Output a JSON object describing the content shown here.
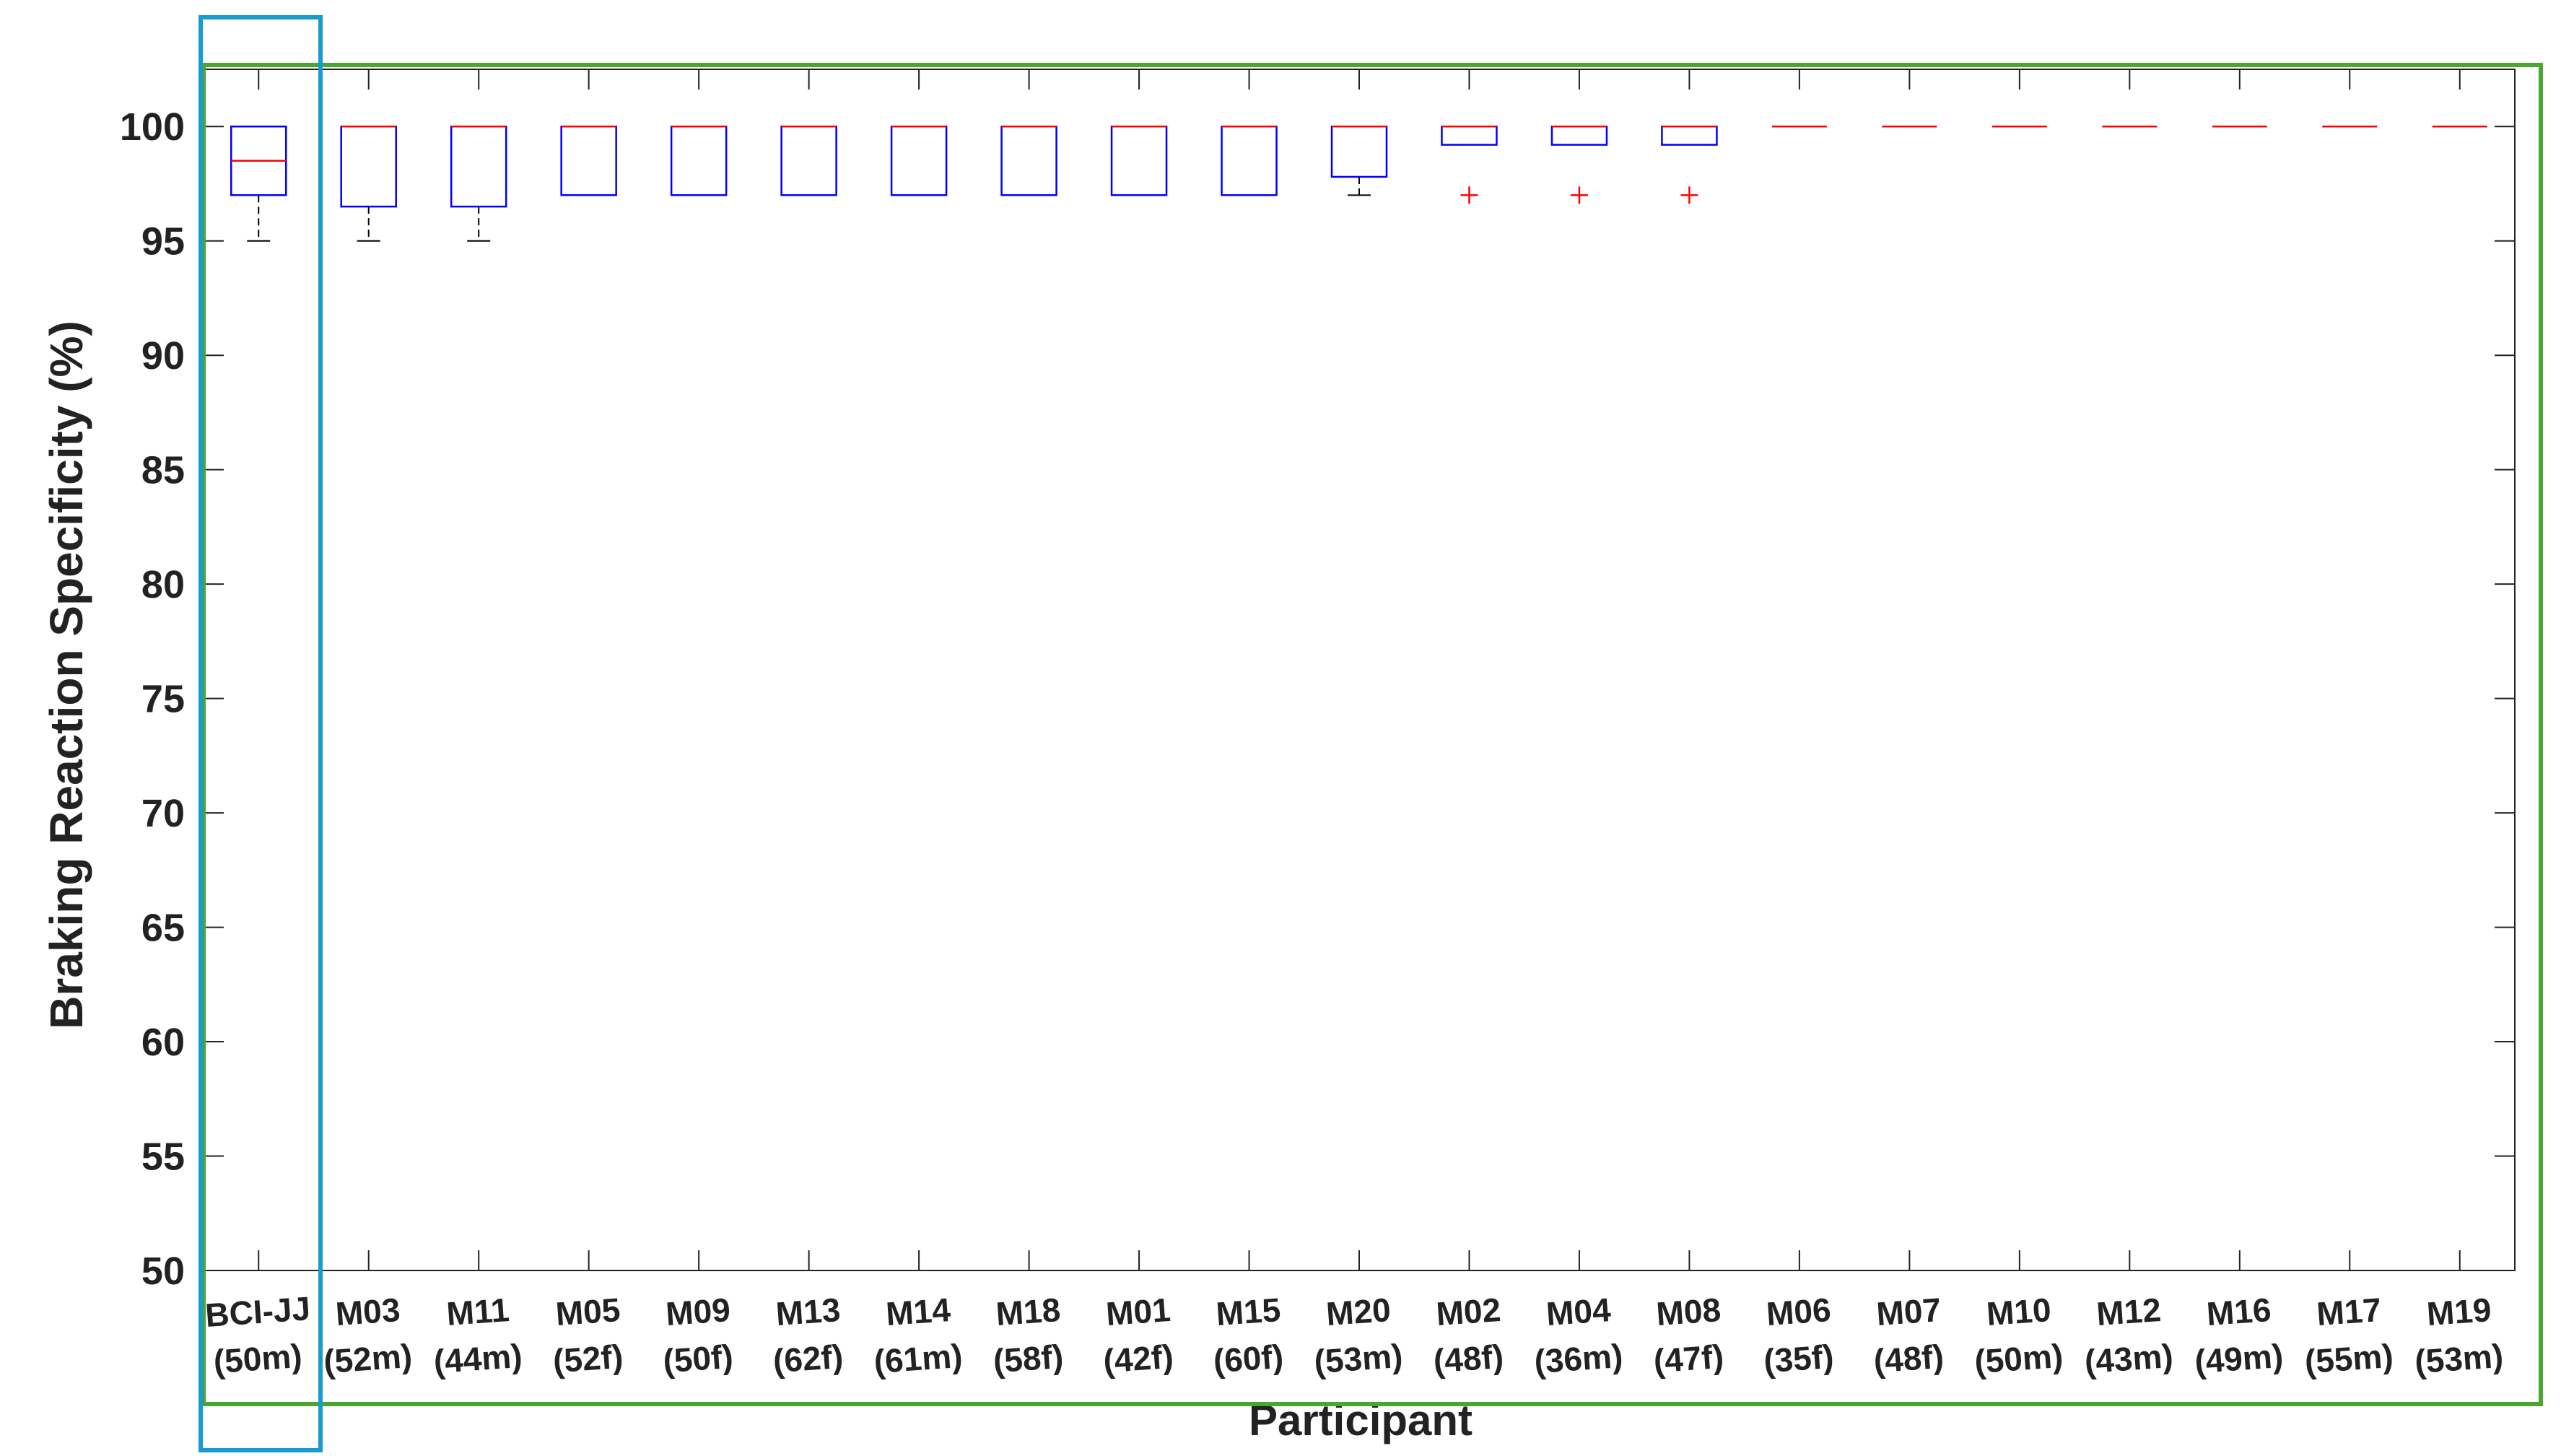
{
  "chart_data": {
    "type": "boxplot",
    "xlabel": "Participant",
    "ylabel": "Braking Reaction Specificity (%)",
    "ylim": [
      50,
      102.5
    ],
    "yticks": [
      50,
      55,
      60,
      65,
      70,
      75,
      80,
      85,
      90,
      95,
      100
    ],
    "grid": false,
    "categories": [
      {
        "id": "BCI-JJ",
        "info": "(50m)"
      },
      {
        "id": "M03",
        "info": "(52m)"
      },
      {
        "id": "M11",
        "info": "(44m)"
      },
      {
        "id": "M05",
        "info": "(52f)"
      },
      {
        "id": "M09",
        "info": "(50f)"
      },
      {
        "id": "M13",
        "info": "(62f)"
      },
      {
        "id": "M14",
        "info": "(61m)"
      },
      {
        "id": "M18",
        "info": "(58f)"
      },
      {
        "id": "M01",
        "info": "(42f)"
      },
      {
        "id": "M15",
        "info": "(60f)"
      },
      {
        "id": "M20",
        "info": "(53m)"
      },
      {
        "id": "M02",
        "info": "(48f)"
      },
      {
        "id": "M04",
        "info": "(36m)"
      },
      {
        "id": "M08",
        "info": "(47f)"
      },
      {
        "id": "M06",
        "info": "(35f)"
      },
      {
        "id": "M07",
        "info": "(48f)"
      },
      {
        "id": "M10",
        "info": "(50m)"
      },
      {
        "id": "M12",
        "info": "(43m)"
      },
      {
        "id": "M16",
        "info": "(49m)"
      },
      {
        "id": "M17",
        "info": "(55m)"
      },
      {
        "id": "M19",
        "info": "(53m)"
      }
    ],
    "boxes": [
      {
        "whisker_low": 95,
        "q1": 97,
        "median": 98.5,
        "q3": 100,
        "whisker_high": 100,
        "outliers": []
      },
      {
        "whisker_low": 95,
        "q1": 96.5,
        "median": 100,
        "q3": 100,
        "whisker_high": 100,
        "outliers": []
      },
      {
        "whisker_low": 95,
        "q1": 96.5,
        "median": 100,
        "q3": 100,
        "whisker_high": 100,
        "outliers": []
      },
      {
        "whisker_low": 97,
        "q1": 97,
        "median": 100,
        "q3": 100,
        "whisker_high": 100,
        "outliers": []
      },
      {
        "whisker_low": 97,
        "q1": 97,
        "median": 100,
        "q3": 100,
        "whisker_high": 100,
        "outliers": []
      },
      {
        "whisker_low": 97,
        "q1": 97,
        "median": 100,
        "q3": 100,
        "whisker_high": 100,
        "outliers": []
      },
      {
        "whisker_low": 97,
        "q1": 97,
        "median": 100,
        "q3": 100,
        "whisker_high": 100,
        "outliers": []
      },
      {
        "whisker_low": 97,
        "q1": 97,
        "median": 100,
        "q3": 100,
        "whisker_high": 100,
        "outliers": []
      },
      {
        "whisker_low": 97,
        "q1": 97,
        "median": 100,
        "q3": 100,
        "whisker_high": 100,
        "outliers": []
      },
      {
        "whisker_low": 97,
        "q1": 97,
        "median": 100,
        "q3": 100,
        "whisker_high": 100,
        "outliers": []
      },
      {
        "whisker_low": 97,
        "q1": 97.8,
        "median": 100,
        "q3": 100,
        "whisker_high": 100,
        "outliers": []
      },
      {
        "whisker_low": 99.2,
        "q1": 99.2,
        "median": 100,
        "q3": 100,
        "whisker_high": 100,
        "outliers": [
          97
        ]
      },
      {
        "whisker_low": 99.2,
        "q1": 99.2,
        "median": 100,
        "q3": 100,
        "whisker_high": 100,
        "outliers": [
          97
        ]
      },
      {
        "whisker_low": 99.2,
        "q1": 99.2,
        "median": 100,
        "q3": 100,
        "whisker_high": 100,
        "outliers": [
          97
        ]
      },
      {
        "whisker_low": 100,
        "q1": 100,
        "median": 100,
        "q3": 100,
        "whisker_high": 100,
        "outliers": []
      },
      {
        "whisker_low": 100,
        "q1": 100,
        "median": 100,
        "q3": 100,
        "whisker_high": 100,
        "outliers": []
      },
      {
        "whisker_low": 100,
        "q1": 100,
        "median": 100,
        "q3": 100,
        "whisker_high": 100,
        "outliers": []
      },
      {
        "whisker_low": 100,
        "q1": 100,
        "median": 100,
        "q3": 100,
        "whisker_high": 100,
        "outliers": []
      },
      {
        "whisker_low": 100,
        "q1": 100,
        "median": 100,
        "q3": 100,
        "whisker_high": 100,
        "outliers": []
      },
      {
        "whisker_low": 100,
        "q1": 100,
        "median": 100,
        "q3": 100,
        "whisker_high": 100,
        "outliers": []
      },
      {
        "whisker_low": 100,
        "q1": 100,
        "median": 100,
        "q3": 100,
        "whisker_high": 100,
        "outliers": []
      }
    ],
    "colors": {
      "box": "#0000ff",
      "median": "#ff0000",
      "whisker": "#000000",
      "outlier": "#ff0000",
      "axis": "#222222",
      "highlight_first": "#1a9bd0",
      "highlight_plot": "#4aa531"
    }
  }
}
